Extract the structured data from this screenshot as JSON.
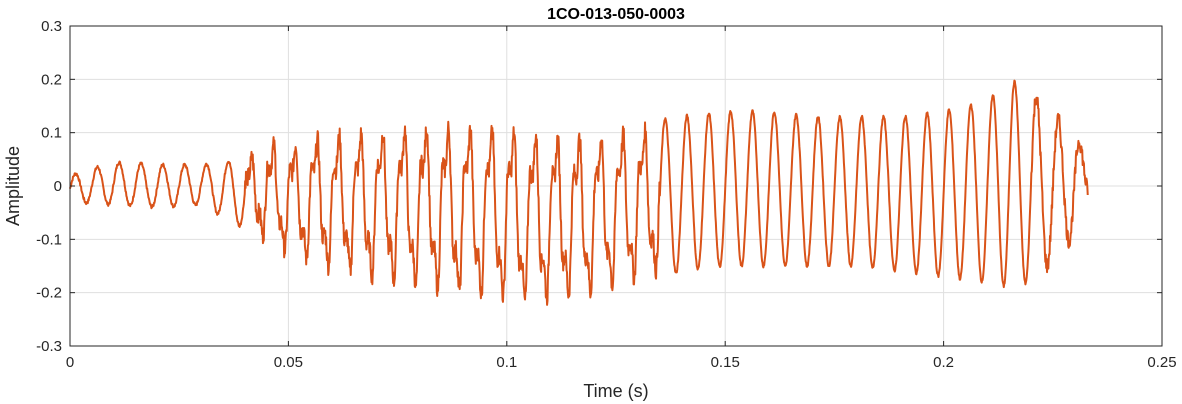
{
  "chart_data": {
    "type": "line",
    "title": "1CO-013-050-0003",
    "xlabel": "Time (s)",
    "ylabel": "Amplitude",
    "xlim": [
      0,
      0.25
    ],
    "ylim": [
      -0.3,
      0.3
    ],
    "xticks": [
      0,
      0.05,
      0.1,
      0.15,
      0.2,
      0.25
    ],
    "xtick_labels": [
      "0",
      "0.05",
      "0.1",
      "0.15",
      "0.2",
      "0.25"
    ],
    "yticks": [
      -0.3,
      -0.2,
      -0.1,
      0,
      0.1,
      0.2,
      0.3
    ],
    "ytick_labels": [
      "-0.3",
      "-0.2",
      "-0.1",
      "0",
      "0.1",
      "0.2",
      "0.3"
    ],
    "grid": true,
    "box": true,
    "series": [
      {
        "color": "#D95319",
        "description": "oscillating waveform, roughly 200 Hz periodic signal",
        "envelope": {
          "x": [
            0,
            0.01,
            0.02,
            0.03,
            0.04,
            0.045,
            0.05,
            0.06,
            0.07,
            0.08,
            0.09,
            0.1,
            0.105,
            0.11,
            0.12,
            0.13,
            0.14,
            0.15,
            0.16,
            0.17,
            0.18,
            0.19,
            0.2,
            0.21,
            0.215,
            0.22,
            0.225,
            0.23,
            0.233
          ],
          "upper": [
            0.02,
            0.045,
            0.04,
            0.04,
            0.05,
            0.09,
            0.09,
            0.11,
            0.12,
            0.13,
            0.13,
            0.125,
            0.12,
            0.11,
            0.11,
            0.12,
            0.13,
            0.14,
            0.14,
            0.13,
            0.13,
            0.13,
            0.14,
            0.16,
            0.2,
            0.18,
            0.13,
            0.11,
            0.04
          ],
          "lower": [
            -0.03,
            -0.035,
            -0.04,
            -0.035,
            -0.08,
            -0.11,
            -0.14,
            -0.17,
            -0.19,
            -0.21,
            -0.22,
            -0.23,
            -0.24,
            -0.23,
            -0.22,
            -0.19,
            -0.16,
            -0.15,
            -0.15,
            -0.15,
            -0.15,
            -0.16,
            -0.17,
            -0.18,
            -0.19,
            -0.18,
            -0.14,
            -0.09,
            -0.02
          ]
        },
        "x_start": 0,
        "x_end": 0.233,
        "period": 0.005
      }
    ]
  },
  "colors": {
    "line": "#D95319",
    "grid": "#DFDFDF",
    "axis": "#262626"
  }
}
